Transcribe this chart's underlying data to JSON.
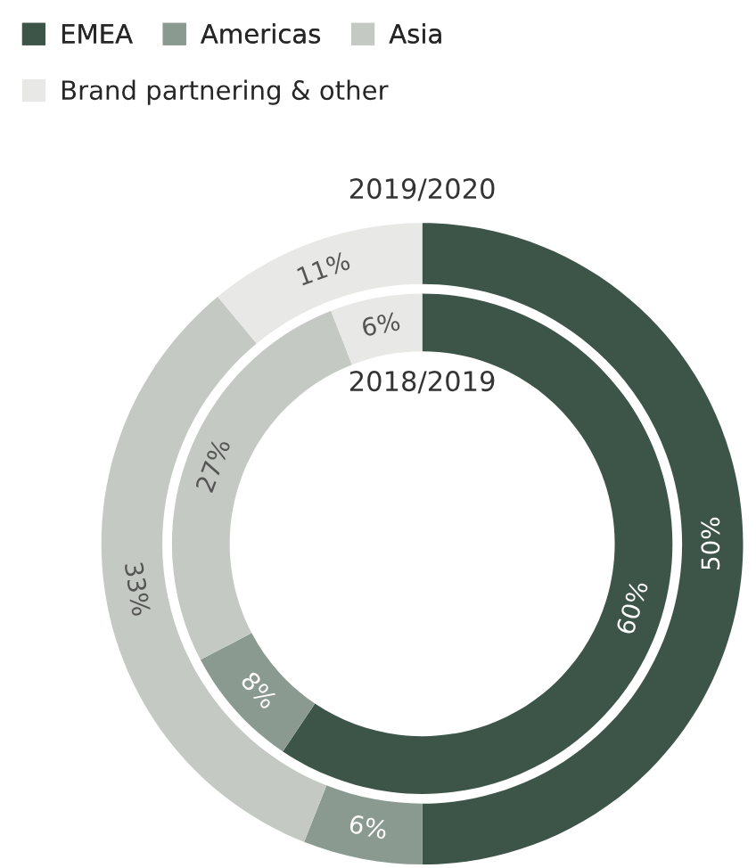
{
  "chart_data": {
    "type": "donut",
    "categories": [
      "EMEA",
      "Americas",
      "Asia",
      "Brand partnering & other"
    ],
    "colors": [
      "#3d5549",
      "#8a9a90",
      "#c5c9c3",
      "#e8e8e6"
    ],
    "legend": "top left",
    "series": [
      {
        "name": "2019/2020",
        "values": [
          50,
          6,
          33,
          11
        ],
        "value_labels": [
          "50%",
          "6%",
          "33%",
          "11%"
        ]
      },
      {
        "name": "2018/2019",
        "values": [
          60,
          8,
          27,
          6
        ],
        "value_labels": [
          "60%",
          "8%",
          "27%",
          "6%"
        ]
      }
    ]
  }
}
